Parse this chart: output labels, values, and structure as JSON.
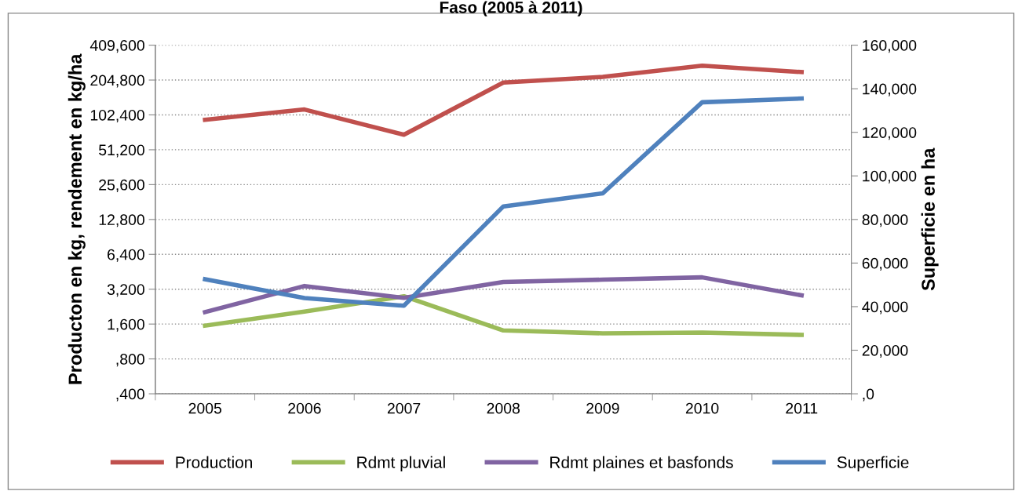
{
  "chart_data": {
    "type": "line",
    "title": "Faso (2005 à 2011)",
    "categories": [
      "2005",
      "2006",
      "2007",
      "2008",
      "2009",
      "2010",
      "2011"
    ],
    "ylabel": "Producton en kg, rendement en kg/ha",
    "y2label": "Superficie en ha",
    "log": "y",
    "ylim": [
      400,
      409600
    ],
    "yticks": [
      {
        "value": 400,
        "label": ",400"
      },
      {
        "value": 800,
        "label": ",800"
      },
      {
        "value": 1600,
        "label": "1,600"
      },
      {
        "value": 3200,
        "label": "3,200"
      },
      {
        "value": 6400,
        "label": "6,400"
      },
      {
        "value": 12800,
        "label": "12,800"
      },
      {
        "value": 25600,
        "label": "25,600"
      },
      {
        "value": 51200,
        "label": "51,200"
      },
      {
        "value": 102400,
        "label": "102,400"
      },
      {
        "value": 204800,
        "label": "204,800"
      },
      {
        "value": 409600,
        "label": "409,600"
      }
    ],
    "y2lim": [
      0,
      160000
    ],
    "y2ticks": [
      {
        "value": 0,
        "label": ",0"
      },
      {
        "value": 20000,
        "label": "20,000"
      },
      {
        "value": 40000,
        "label": "40,000"
      },
      {
        "value": 60000,
        "label": "60,000"
      },
      {
        "value": 80000,
        "label": "80,000"
      },
      {
        "value": 100000,
        "label": "100,000"
      },
      {
        "value": 120000,
        "label": "120,000"
      },
      {
        "value": 140000,
        "label": "140,000"
      },
      {
        "value": 160000,
        "label": "160,000"
      }
    ],
    "grid": "y",
    "legend": "bottom",
    "line_style": "solid",
    "series": [
      {
        "name": "Production",
        "color": "#c0504d",
        "values": [
          93000,
          114000,
          69000,
          195000,
          218000,
          272000,
          240000
        ]
      },
      {
        "name": "Rdmt pluvial",
        "color": "#9bbb59",
        "values": [
          1550,
          2050,
          2780,
          1410,
          1330,
          1350,
          1290
        ]
      },
      {
        "name": "Rdmt plaines et basfonds",
        "color": "#8064a2",
        "values": [
          2030,
          3410,
          2690,
          3700,
          3870,
          4050,
          2830
        ]
      },
      {
        "name": "Superficie",
        "color": "#4f81bd",
        "axis": "y2",
        "values": [
          52600,
          43900,
          40400,
          86000,
          92000,
          133800,
          135500
        ]
      }
    ]
  }
}
